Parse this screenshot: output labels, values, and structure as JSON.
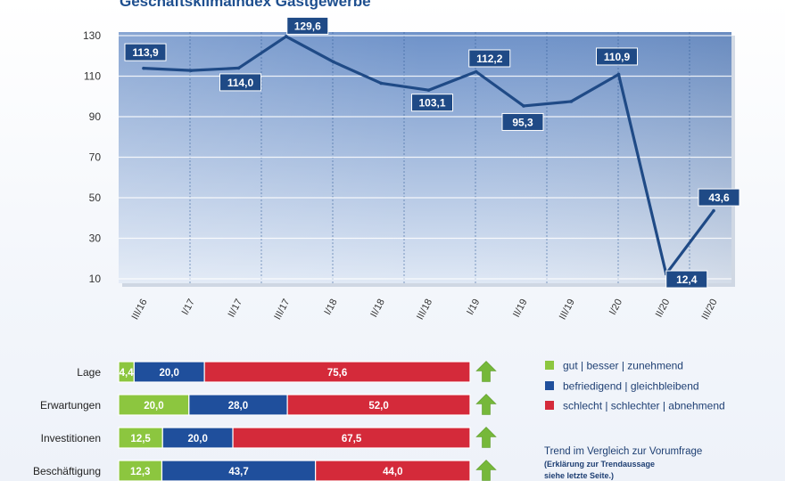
{
  "chart_data": [
    {
      "type": "line",
      "title": "Geschäftsklimaindex Gastgewerbe",
      "x": [
        "III/16",
        "I/17",
        "II/17",
        "III/17",
        "I/18",
        "II/18",
        "III/18",
        "I/19",
        "II/19",
        "III/19",
        "I/20",
        "II/20",
        "III/20"
      ],
      "series": [
        {
          "values": [
            113.9,
            112.8,
            114.0,
            129.6,
            117.0,
            106.5,
            103.1,
            112.2,
            95.3,
            97.5,
            110.9,
            12.4,
            43.6
          ]
        }
      ],
      "data_labels": [
        {
          "index": 0,
          "text": "113,9"
        },
        {
          "index": 2,
          "text": "114,0"
        },
        {
          "index": 3,
          "text": "129,6"
        },
        {
          "index": 6,
          "text": "103,1"
        },
        {
          "index": 7,
          "text": "112,2"
        },
        {
          "index": 8,
          "text": "95,3"
        },
        {
          "index": 10,
          "text": "110,9"
        },
        {
          "index": 11,
          "text": "12,4"
        },
        {
          "index": 12,
          "text": "43,6"
        }
      ],
      "y_ticks": [
        "10",
        "30",
        "50",
        "70",
        "90",
        "110",
        "130"
      ],
      "ylim": [
        10,
        130
      ],
      "grid": true,
      "colors": {
        "line": "#1f4a86",
        "label_bg": "#1f4a86",
        "plot_top": "#6e92c9",
        "plot_bottom": "#dfe8f5"
      }
    },
    {
      "type": "bar",
      "stacked": true,
      "orientation": "horizontal",
      "categories": [
        "Lage",
        "Erwartungen",
        "Investitionen",
        "Beschäftigung"
      ],
      "series": [
        {
          "name": "gut | besser | zunehmend",
          "values": [
            4.4,
            20.0,
            12.5,
            12.3
          ],
          "labels": [
            "4,4",
            "20,0",
            "12,5",
            "12,3"
          ],
          "color": "#8cc63f"
        },
        {
          "name": "befriedigend | gleichbleibend",
          "values": [
            20.0,
            28.0,
            20.0,
            43.7
          ],
          "labels": [
            "20,0",
            "28,0",
            "20,0",
            "43,7"
          ],
          "color": "#1f4f9c"
        },
        {
          "name": "schlecht | schlechter | abnehmend",
          "values": [
            75.6,
            52.0,
            67.5,
            44.0
          ],
          "labels": [
            "75,6",
            "52,0",
            "67,5",
            "44,0"
          ],
          "color": "#d42a3a"
        }
      ],
      "trend": [
        "up",
        "up",
        "up",
        "up"
      ],
      "trend_color": "#76b83a",
      "trend_note": {
        "title": "Trend im Vergleich zur Vorumfrage",
        "sub1": "(Erklärung zur Trendaussage",
        "sub2": "siehe letzte Seite.)"
      }
    }
  ]
}
